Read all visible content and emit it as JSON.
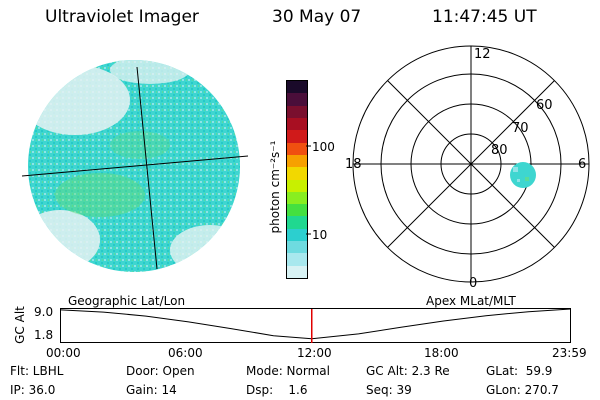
{
  "header": {
    "instrument": "Ultraviolet Imager",
    "date": "30 May 07",
    "time": "11:47:45 UT"
  },
  "colorbar": {
    "unit_label": "photon cm⁻²s⁻¹",
    "ticks": [
      "100",
      "10"
    ],
    "colors": [
      "#1a0a2a",
      "#4a0e3a",
      "#7a0f2e",
      "#a80f22",
      "#d01a1a",
      "#f05010",
      "#f7a000",
      "#f2d800",
      "#c8f000",
      "#88ee20",
      "#44e040",
      "#20d890",
      "#2ccfcf",
      "#6edbe0",
      "#a8e8ee",
      "#d8f2f4"
    ]
  },
  "geo_panel": {
    "title": "Geographic Lat/Lon"
  },
  "polar_panel": {
    "title": "Apex MLat/MLT",
    "mlt_labels": {
      "top": "12",
      "left": "18",
      "right": "6",
      "bottom": "0"
    },
    "lat_labels": [
      "60",
      "70",
      "80"
    ]
  },
  "altitude_plot": {
    "ylabel": "GC Alt",
    "y_ticks": [
      "9.0",
      "1.8"
    ],
    "x_ticks": [
      "00:00",
      "06:00",
      "12:00",
      "18:00",
      "23:59"
    ],
    "current_time_marker_hours": 11.8
  },
  "chart_data": {
    "type": "line",
    "title": "",
    "xlabel": "",
    "ylabel": "GC Alt",
    "x": [
      0,
      2,
      4,
      6,
      8,
      10,
      11.8,
      14,
      16,
      18,
      20,
      22,
      23.98
    ],
    "series": [
      {
        "values": [
          8.8,
          8.3,
          7.4,
          6.1,
          4.6,
          3.0,
          2.3,
          3.4,
          4.9,
          6.3,
          7.5,
          8.4,
          9.0
        ]
      }
    ],
    "xlim": [
      0,
      24
    ],
    "ylim": [
      1.8,
      9.0
    ],
    "x_tick_labels": [
      "00:00",
      "06:00",
      "12:00",
      "18:00",
      "23:59"
    ],
    "y_tick_labels": [
      "9.0",
      "1.8"
    ],
    "grid": false
  },
  "status": {
    "flt": "Flt: LBHL",
    "ip": "IP: 36.0",
    "door": "Door: Open",
    "gain": "Gain: 14",
    "mode": "Mode: Normal",
    "dsp": "Dsp:    1.6",
    "gcalt": "GC Alt: 2.3 Re",
    "seq": "Seq: 39",
    "glat": "GLat:  59.9",
    "glon": "GLon: 270.7"
  }
}
